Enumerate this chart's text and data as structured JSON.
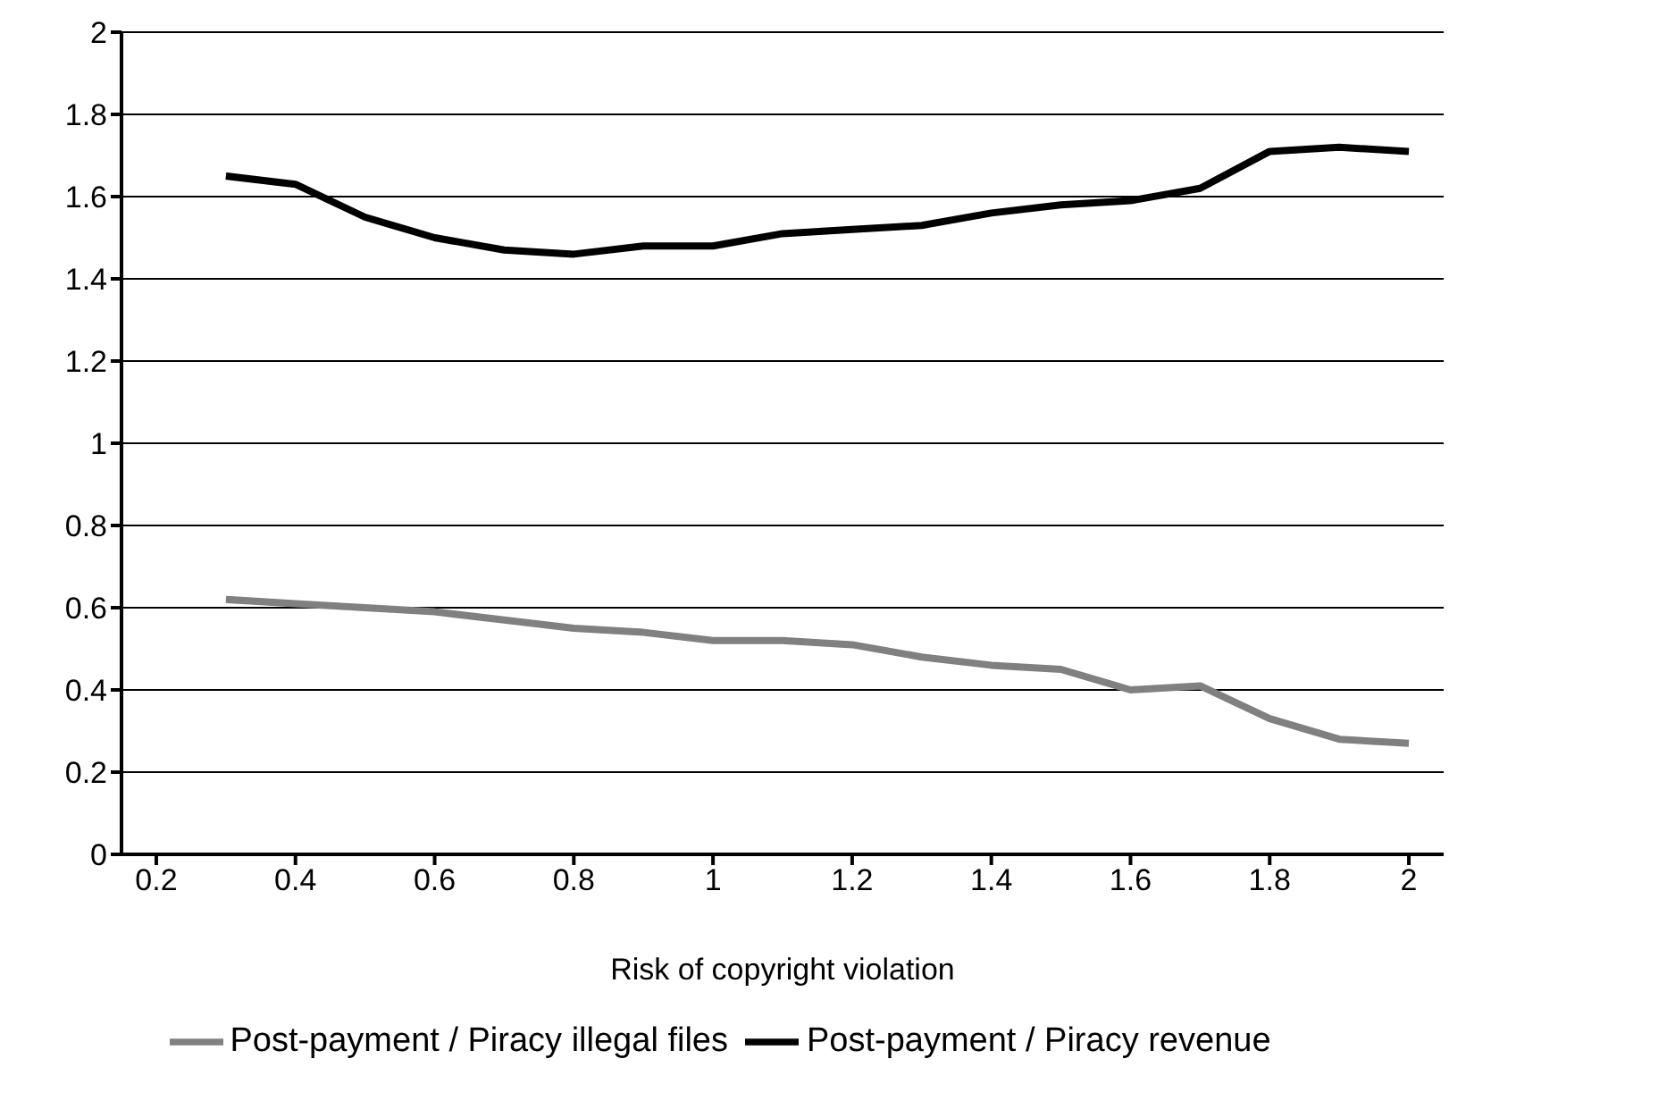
{
  "chart_data": {
    "type": "line",
    "xlabel": "Risk of copyright violation",
    "x": [
      0.3,
      0.4,
      0.5,
      0.6,
      0.7,
      0.8,
      0.9,
      1.0,
      1.1,
      1.2,
      1.3,
      1.4,
      1.5,
      1.6,
      1.7,
      1.8,
      1.9,
      2.0
    ],
    "series": [
      {
        "name": "Post-payment / Piracy revenue",
        "color": "#000000",
        "values": [
          1.65,
          1.63,
          1.55,
          1.5,
          1.47,
          1.46,
          1.48,
          1.48,
          1.51,
          1.52,
          1.53,
          1.56,
          1.58,
          1.59,
          1.62,
          1.71,
          1.72,
          1.71
        ]
      },
      {
        "name": "Post-payment / Piracy illegal files",
        "color": "#808080",
        "values": [
          0.62,
          0.61,
          0.6,
          0.59,
          0.57,
          0.55,
          0.54,
          0.52,
          0.52,
          0.51,
          0.48,
          0.46,
          0.45,
          0.4,
          0.41,
          0.33,
          0.28,
          0.27
        ]
      }
    ],
    "xlim": [
      0.15,
      2.05
    ],
    "xticks": [
      0.2,
      0.4,
      0.6,
      0.8,
      1,
      1.2,
      1.4,
      1.6,
      1.8,
      2
    ],
    "ylim": [
      0,
      2
    ],
    "yticks": [
      0,
      0.2,
      0.4,
      0.6,
      0.8,
      1,
      1.2,
      1.4,
      1.6,
      1.8,
      2
    ],
    "grid": "y",
    "legend": "bottom",
    "marker": "none",
    "line_style": "solid"
  }
}
